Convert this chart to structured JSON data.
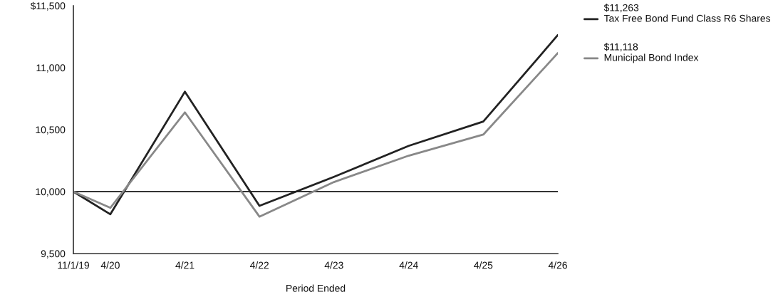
{
  "chart_data": {
    "type": "line",
    "xlabel": "Period Ended",
    "x": [
      "2019-11-01",
      "2020-04-30",
      "2021-04-30",
      "2022-04-30",
      "2023-04-30",
      "2024-04-30",
      "2025-04-30",
      "2026-04-30"
    ],
    "series": [
      {
        "name": "Tax Free Bond Fund Class R6 Shares",
        "color": "#222222",
        "values": [
          10000,
          9817,
          10806,
          9885,
          10119,
          10369,
          10565,
          11263
        ]
      },
      {
        "name": "Municipal Bond Index",
        "color": "#888888",
        "values": [
          10000,
          9869,
          10639,
          9798,
          10077,
          10290,
          10460,
          11118
        ]
      }
    ],
    "annotations": [
      "$11,263",
      "$11,118"
    ],
    "xlim": [
      "2019-11-01",
      "2026-04-30"
    ],
    "xticks": [
      {
        "value": "2019-11-01",
        "label": "11/1/19"
      },
      {
        "value": "2020-04-30",
        "label": "4/20"
      },
      {
        "value": "2021-04-30",
        "label": "4/21"
      },
      {
        "value": "2022-04-30",
        "label": "4/22"
      },
      {
        "value": "2023-04-30",
        "label": "4/23"
      },
      {
        "value": "2024-04-30",
        "label": "4/24"
      },
      {
        "value": "2025-04-30",
        "label": "4/25"
      },
      {
        "value": "2026-04-30",
        "label": "4/26"
      }
    ],
    "ylim": [
      9500,
      11500
    ],
    "yticks": [
      {
        "value": 9500,
        "label": "9,500"
      },
      {
        "value": 10000,
        "label": "10,000"
      },
      {
        "value": 10500,
        "label": "10,500"
      },
      {
        "value": 11000,
        "label": "11,000"
      },
      {
        "value": 11500,
        "label": "$11,500"
      }
    ],
    "ref_lines": [
      {
        "axis": "y",
        "value": 10000,
        "color": "#333333",
        "line_style": "solid"
      }
    ],
    "grid": false,
    "legend": "right",
    "marker": "none",
    "line_style": "solid"
  }
}
